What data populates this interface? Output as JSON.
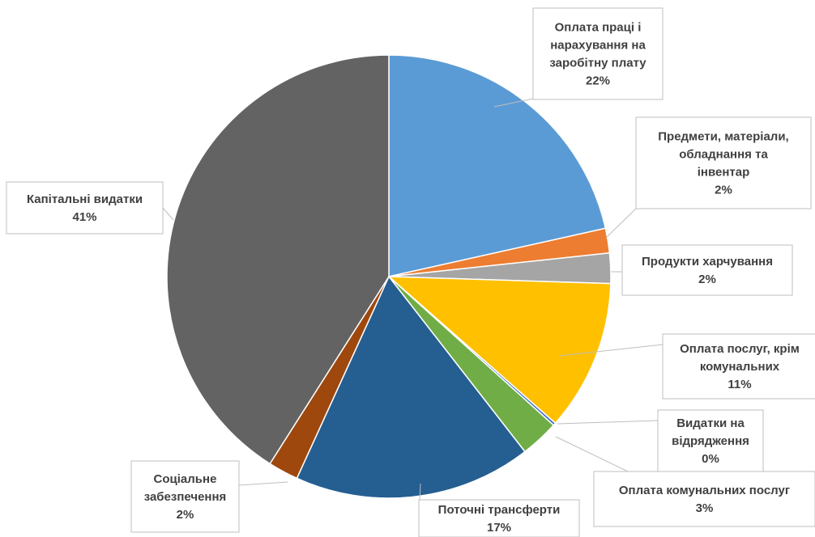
{
  "chart_data": {
    "type": "pie",
    "title": "",
    "legend": "none",
    "slices": [
      {
        "label_lines": [
          "Оплата праці і",
          "нарахування на",
          "заробітну плату"
        ],
        "percent_label": "22%",
        "value": 21.5,
        "color": "#5b9bd5"
      },
      {
        "label_lines": [
          "Предмети, матеріали,",
          "обладнання та",
          "інвентар"
        ],
        "percent_label": "2%",
        "value": 1.8,
        "color": "#ed7d31"
      },
      {
        "label_lines": [
          "Продукти харчування"
        ],
        "percent_label": "2%",
        "value": 2.2,
        "color": "#a5a5a5"
      },
      {
        "label_lines": [
          "Оплата послуг, крім",
          "комунальних"
        ],
        "percent_label": "11%",
        "value": 11.0,
        "color": "#ffc000"
      },
      {
        "label_lines": [
          "Видатки на",
          "відрядження"
        ],
        "percent_label": "0%",
        "value": 0.2,
        "color": "#4472c4"
      },
      {
        "label_lines": [
          "Оплата комунальних послуг"
        ],
        "percent_label": "3%",
        "value": 2.8,
        "color": "#70ad47"
      },
      {
        "label_lines": [
          "Поточні трансферти"
        ],
        "percent_label": "17%",
        "value": 17.3,
        "color": "#255e91"
      },
      {
        "label_lines": [
          "Соціальне",
          "забезпечення"
        ],
        "percent_label": "2%",
        "value": 2.2,
        "color": "#9e480e"
      },
      {
        "label_lines": [
          "Капітальні видатки"
        ],
        "percent_label": "41%",
        "value": 41.0,
        "color": "#636363"
      }
    ]
  }
}
